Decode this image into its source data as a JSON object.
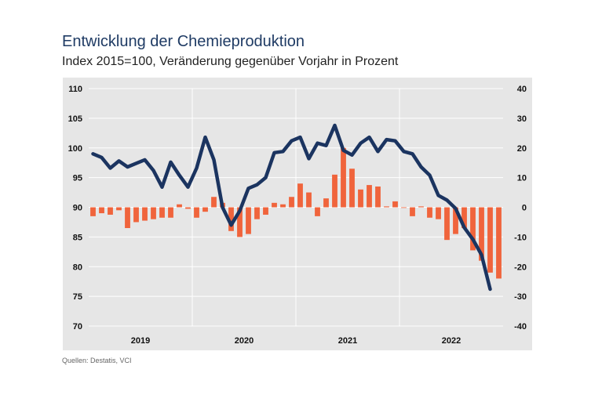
{
  "header": {
    "title": "Entwicklung der Chemieproduktion",
    "subtitle": "Index 2015=100, Veränderung gegenüber Vorjahr in Prozent"
  },
  "footer": {
    "source": "Quellen: Destatis, VCI"
  },
  "colors": {
    "background_panel": "#e6e6e6",
    "line": "#1b3460",
    "bars": "#f0643c",
    "grid": "#ffffff"
  },
  "chart_data": {
    "type": "bar+line",
    "title": "Entwicklung der Chemieproduktion",
    "subtitle": "Index 2015=100, Veränderung gegenüber Vorjahr in Prozent",
    "left_axis": {
      "label": "Index 2015=100",
      "ylim": [
        70,
        110
      ],
      "ticks": [
        70,
        75,
        80,
        85,
        90,
        95,
        100,
        105,
        110
      ]
    },
    "right_axis": {
      "label": "Veränderung gegenüber Vorjahr in Prozent",
      "ylim": [
        -40,
        40
      ],
      "ticks": [
        -40,
        -30,
        -20,
        -10,
        0,
        10,
        20,
        30,
        40
      ]
    },
    "year_labels": [
      "2019",
      "2020",
      "2021",
      "2022"
    ],
    "months_count": 48,
    "series": [
      {
        "name": "Veränderung gegenüber Vorjahr in Prozent",
        "type": "bar",
        "axis": "right",
        "values": [
          -3,
          -2,
          -2.5,
          -1,
          -7,
          -5,
          -4.5,
          -4,
          -3.5,
          -3.5,
          1,
          -0.5,
          -3.5,
          -1.5,
          3.5,
          1.5,
          -8,
          -10,
          -9,
          -4,
          -2.5,
          1.5,
          1,
          3.5,
          8,
          5,
          -3,
          3,
          11,
          20,
          13,
          6,
          7.5,
          7,
          0.3,
          2,
          0,
          -3,
          0.3,
          -3.5,
          -4,
          -11,
          -9,
          -7,
          -14.5,
          -18,
          -22,
          -24
        ]
      },
      {
        "name": "Index 2015=100",
        "type": "line",
        "axis": "left",
        "values": [
          99,
          98.4,
          96.6,
          97.8,
          96.8,
          97.4,
          98,
          96.2,
          93.4,
          97.6,
          95.4,
          93.4,
          96.6,
          101.8,
          98,
          90,
          87,
          89.4,
          93.2,
          93.8,
          95,
          99.2,
          99.4,
          101.2,
          101.8,
          98.2,
          100.8,
          100.4,
          103.8,
          99.6,
          98.8,
          100.8,
          101.8,
          99.4,
          101.4,
          101.2,
          99.4,
          99,
          96.8,
          95.4,
          92,
          91.2,
          89.8,
          86.6,
          84.6,
          82,
          76.2,
          null
        ]
      }
    ]
  }
}
